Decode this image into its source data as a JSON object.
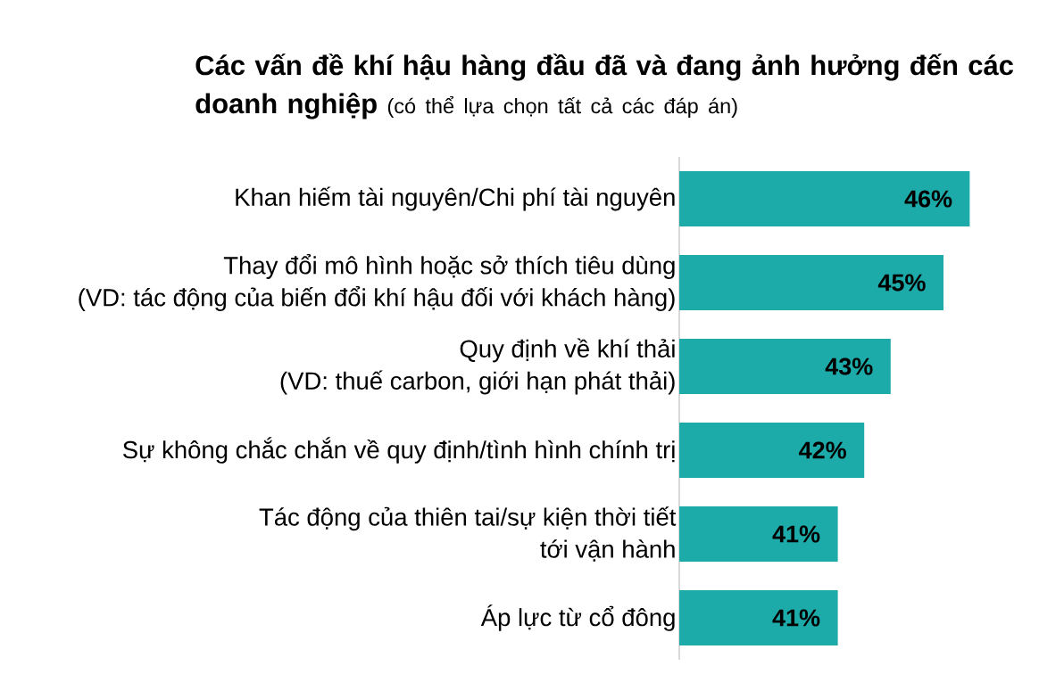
{
  "chart_data": {
    "type": "bar",
    "orientation": "horizontal",
    "title": "Các vấn đề khí hậu hàng đầu đã và đang ảnh hưởng đến các doanh nghiệp",
    "subtitle": "(có thể lựa chọn tất cả các đáp án)",
    "categories": [
      "Khan hiếm tài nguyên/Chi phí tài nguyên",
      "Thay đổi mô hình hoặc sở thích tiêu dùng\n(VD: tác động của biến đổi khí hậu đối với khách hàng)",
      "Quy định về khí thải\n(VD: thuế carbon, giới hạn phát thải)",
      "Sự không chắc chắn về quy định/tình hình chính trị",
      "Tác động của thiên tai/sự kiện thời tiết\ntới vận hành",
      "Áp lực từ cổ đông"
    ],
    "values": [
      46,
      45,
      43,
      42,
      41,
      41
    ],
    "value_labels": [
      "46%",
      "45%",
      "43%",
      "42%",
      "41%",
      "41%"
    ],
    "color": "#1dabaa",
    "xlim": [
      35,
      46
    ],
    "tick_labels": "y"
  }
}
